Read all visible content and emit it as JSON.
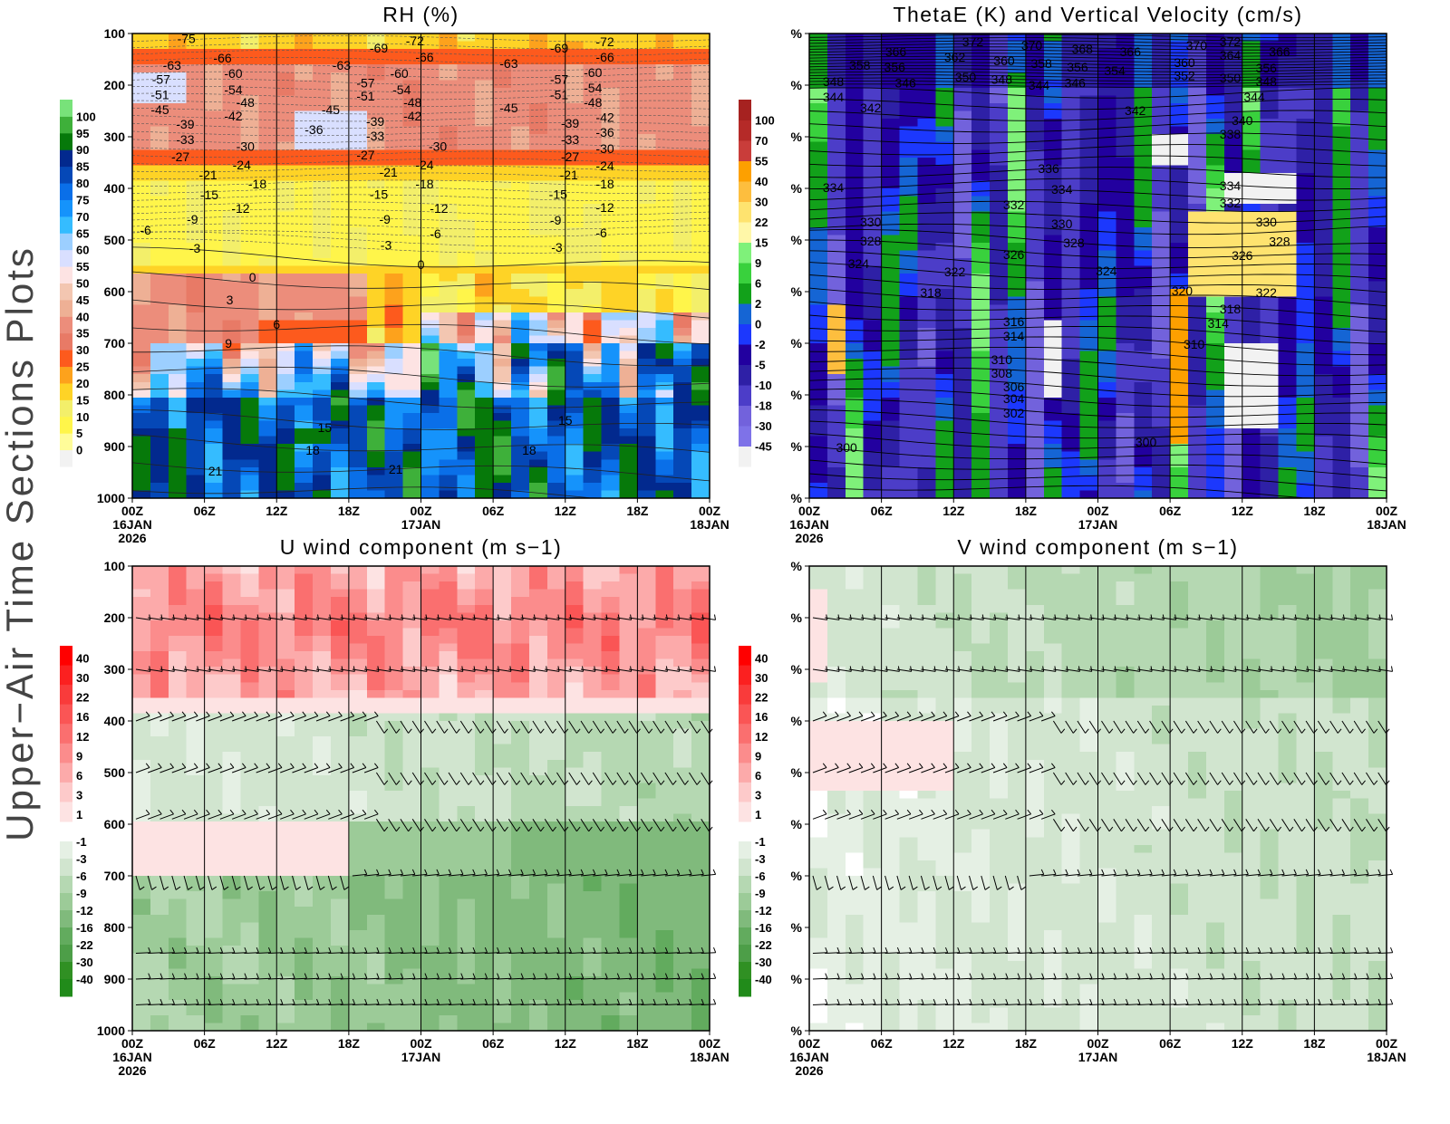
{
  "side_label": "Upper−Air Time Sections Plots",
  "chart_data": [
    {
      "type": "heatmap",
      "title": "RH (%)",
      "y_ticks": [
        "100",
        "200",
        "300",
        "400",
        "500",
        "600",
        "700",
        "800",
        "900",
        "1000"
      ],
      "ylim": [
        1000,
        100
      ],
      "x_ticks": [
        "00Z",
        "06Z",
        "12Z",
        "18Z",
        "00Z",
        "06Z",
        "12Z",
        "18Z",
        "00Z"
      ],
      "x_dates": {
        "0": [
          "16JAN",
          "2026"
        ],
        "4": [
          "17JAN"
        ],
        "8": [
          "18JAN"
        ]
      },
      "colorbar": {
        "levels": [
          "0",
          "5",
          "10",
          "15",
          "20",
          "25",
          "30",
          "35",
          "40",
          "45",
          "50",
          "55",
          "60",
          "65",
          "70",
          "75",
          "80",
          "85",
          "90",
          "95",
          "100"
        ],
        "colors": [
          "#f2f2f2",
          "#fffc99",
          "#fff54a",
          "#f3ef6a",
          "#fed326",
          "#fda21c",
          "#fd5a1d",
          "#e87a66",
          "#ec8d7b",
          "#eeb095",
          "#f3c6b1",
          "#fde3e3",
          "#d9dfff",
          "#9ccfff",
          "#35bcff",
          "#1593fb",
          "#0a6fe8",
          "#0548b7",
          "#02298e",
          "#06790a",
          "#3eb03a",
          "#78e27a"
        ]
      },
      "contour_labels": [
        [
          3.3,
          161,
          "-63"
        ],
        [
          2.4,
          189,
          "-57"
        ],
        [
          2.3,
          218,
          "-51"
        ],
        [
          2.3,
          247,
          "-45"
        ],
        [
          7.5,
          147,
          "-66"
        ],
        [
          8.4,
          177,
          "-60"
        ],
        [
          8.4,
          209,
          "-54"
        ],
        [
          9.4,
          233,
          "-48"
        ],
        [
          8.4,
          260,
          "-42"
        ],
        [
          4.4,
          275,
          "-39"
        ],
        [
          4.4,
          305,
          "-33"
        ],
        [
          4.0,
          339,
          "-27"
        ],
        [
          9.4,
          318,
          "-30"
        ],
        [
          6.3,
          374,
          "-21"
        ],
        [
          9.1,
          354,
          "-24"
        ],
        [
          6.4,
          412,
          "-15"
        ],
        [
          10.4,
          391,
          "-18"
        ],
        [
          5.0,
          460,
          "-9"
        ],
        [
          9.0,
          439,
          "-12"
        ],
        [
          1.1,
          481,
          "-6"
        ],
        [
          5.2,
          516,
          "-3"
        ],
        [
          10,
          572,
          "0"
        ],
        [
          8.1,
          616,
          "3"
        ],
        [
          12,
          663,
          "6"
        ],
        [
          8,
          700,
          "9"
        ],
        [
          16,
          863,
          "15"
        ],
        [
          15,
          907,
          "18"
        ],
        [
          6.9,
          947,
          "21"
        ],
        [
          20.5,
          128,
          "-69"
        ],
        [
          23.5,
          114,
          "-72"
        ],
        [
          24.3,
          146,
          "-66"
        ],
        [
          17.4,
          161,
          "-63"
        ],
        [
          22.2,
          177,
          "-60"
        ],
        [
          19.4,
          196,
          "-57"
        ],
        [
          19.4,
          221,
          "-51"
        ],
        [
          22.4,
          209,
          "-54"
        ],
        [
          16.5,
          247,
          "-45"
        ],
        [
          23.3,
          233,
          "-48"
        ],
        [
          23.3,
          260,
          "-42"
        ],
        [
          15.1,
          286,
          "-36"
        ],
        [
          20.2,
          270,
          "-39"
        ],
        [
          20.2,
          298,
          "-33"
        ],
        [
          19.4,
          335,
          "-27"
        ],
        [
          25.4,
          318,
          "-30"
        ],
        [
          21.3,
          368,
          "-21"
        ],
        [
          24.3,
          354,
          "-24"
        ],
        [
          20.5,
          411,
          "-15"
        ],
        [
          24.3,
          391,
          "-18"
        ],
        [
          21,
          460,
          "-9"
        ],
        [
          25.5,
          439,
          "-12"
        ],
        [
          25.2,
          488,
          "-6"
        ],
        [
          21.1,
          510,
          "-3"
        ],
        [
          24,
          547,
          "0"
        ],
        [
          21.9,
          944,
          "21"
        ],
        [
          31.3,
          158,
          "-63"
        ],
        [
          35.5,
          128,
          "-69"
        ],
        [
          39.3,
          116,
          "-72"
        ],
        [
          39.3,
          146,
          "-66"
        ],
        [
          38.3,
          175,
          "-60"
        ],
        [
          35.5,
          189,
          "-57"
        ],
        [
          38.3,
          205,
          "-54"
        ],
        [
          35.5,
          218,
          "-51"
        ],
        [
          38.3,
          233,
          "-48"
        ],
        [
          31.3,
          244,
          "-45"
        ],
        [
          39.3,
          262,
          "-42"
        ],
        [
          36.4,
          274,
          "-39"
        ],
        [
          39.3,
          291,
          "-36"
        ],
        [
          36.4,
          305,
          "-33"
        ],
        [
          39.3,
          323,
          "-30"
        ],
        [
          36.4,
          339,
          "-27"
        ],
        [
          39.3,
          356,
          "-24"
        ],
        [
          36.3,
          374,
          "-21"
        ],
        [
          39.3,
          391,
          "-18"
        ],
        [
          35.4,
          411,
          "-15"
        ],
        [
          39.3,
          437,
          "-12"
        ],
        [
          35.2,
          461,
          "-9"
        ],
        [
          39,
          486,
          "-6"
        ],
        [
          35.3,
          514,
          "-3"
        ],
        [
          36,
          849,
          "15"
        ],
        [
          33,
          907,
          "18"
        ],
        [
          4.5,
          110,
          "-75"
        ]
      ]
    },
    {
      "type": "heatmap",
      "title": "ThetaE (K) and Vertical Velocity (cm/s)",
      "y_ticks": [
        "%",
        "%",
        "%",
        "%",
        "%",
        "%",
        "%",
        "%",
        "%",
        "%"
      ],
      "x_ticks": [
        "00Z",
        "06Z",
        "12Z",
        "18Z",
        "00Z",
        "06Z",
        "12Z",
        "18Z",
        "00Z"
      ],
      "x_dates": {
        "0": [
          "16JAN",
          "2026"
        ],
        "4": [
          "17JAN"
        ],
        "8": [
          "18JAN"
        ]
      },
      "colorbar": {
        "levels": [
          "-45",
          "-30",
          "-18",
          "-10",
          "-5",
          "-2",
          "0",
          "2",
          "6",
          "9",
          "15",
          "22",
          "30",
          "40",
          "55",
          "70",
          "100"
        ],
        "colors": [
          "#f2f2f2",
          "#7e72e8",
          "#7262dc",
          "#4c3dc8",
          "#2e20a6",
          "#22009f",
          "#1c38fd",
          "#1565d4",
          "#12a11a",
          "#39d13d",
          "#7ff17a",
          "#fff7a8",
          "#fee36f",
          "#fdbe3e",
          "#fda000",
          "#c93d3a",
          "#b52a28",
          "#a62220"
        ]
      },
      "contour_labels": [
        [
          7.2,
          135,
          "366"
        ],
        [
          13.6,
          116,
          "372"
        ],
        [
          18.5,
          123,
          "370"
        ],
        [
          22.7,
          130,
          "368"
        ],
        [
          26.7,
          135,
          "366"
        ],
        [
          4.2,
          161,
          "358"
        ],
        [
          7.1,
          165,
          "356"
        ],
        [
          12.1,
          146,
          "362"
        ],
        [
          16.2,
          153,
          "360"
        ],
        [
          19.3,
          158,
          "358"
        ],
        [
          22.3,
          165,
          "356"
        ],
        [
          25.4,
          172,
          "354"
        ],
        [
          2.0,
          193,
          "348"
        ],
        [
          8.0,
          196,
          "346"
        ],
        [
          13.0,
          184,
          "350"
        ],
        [
          16.0,
          189,
          "348"
        ],
        [
          19.1,
          200,
          "344"
        ],
        [
          22.1,
          196,
          "346"
        ],
        [
          2.0,
          223,
          "344"
        ],
        [
          5.1,
          244,
          "342"
        ],
        [
          27.1,
          249,
          "342"
        ],
        [
          2.0,
          398,
          "334"
        ],
        [
          5.1,
          465,
          "330"
        ],
        [
          5.1,
          502,
          "328"
        ],
        [
          4.1,
          546,
          "324"
        ],
        [
          12.1,
          561,
          "322"
        ],
        [
          10.1,
          602,
          "318"
        ],
        [
          19.9,
          361,
          "336"
        ],
        [
          21,
          402,
          "334"
        ],
        [
          17,
          432,
          "332"
        ],
        [
          21,
          468,
          "330"
        ],
        [
          22,
          505,
          "328"
        ],
        [
          17,
          528,
          "326"
        ],
        [
          24.7,
          560,
          "324"
        ],
        [
          17,
          658,
          "316"
        ],
        [
          17,
          686,
          "314"
        ],
        [
          16,
          732,
          "310"
        ],
        [
          16,
          758,
          "308"
        ],
        [
          17,
          784,
          "306"
        ],
        [
          17,
          807,
          "304"
        ],
        [
          17,
          835,
          "302"
        ],
        [
          3.1,
          902,
          "300"
        ],
        [
          28,
          891,
          "300"
        ],
        [
          32.2,
          123,
          "370"
        ],
        [
          35,
          116,
          "372"
        ],
        [
          39.1,
          135,
          "366"
        ],
        [
          31.2,
          156,
          "360"
        ],
        [
          35,
          142,
          "364"
        ],
        [
          38,
          167,
          "356"
        ],
        [
          31.2,
          182,
          "352"
        ],
        [
          35,
          186,
          "350"
        ],
        [
          38,
          193,
          "348"
        ],
        [
          37,
          223,
          "344"
        ],
        [
          36,
          268,
          "340"
        ],
        [
          35,
          295,
          "338"
        ],
        [
          35,
          395,
          "334"
        ],
        [
          35,
          428,
          "332"
        ],
        [
          38,
          465,
          "330"
        ],
        [
          39.1,
          503,
          "328"
        ],
        [
          36,
          530,
          "326"
        ],
        [
          38,
          602,
          "322"
        ],
        [
          31,
          598,
          "320"
        ],
        [
          35,
          633,
          "318"
        ],
        [
          34,
          661,
          "314"
        ],
        [
          32,
          702,
          "310"
        ]
      ]
    },
    {
      "type": "heatmap",
      "title": "U wind component (m s−1)",
      "y_ticks": [
        "100",
        "200",
        "300",
        "400",
        "500",
        "600",
        "700",
        "800",
        "900",
        "1000"
      ],
      "x_ticks": [
        "00Z",
        "06Z",
        "12Z",
        "18Z",
        "00Z",
        "06Z",
        "12Z",
        "18Z",
        "00Z"
      ],
      "x_dates": {
        "0": [
          "16JAN",
          "2026"
        ],
        "4": [
          "17JAN"
        ],
        "8": [
          "18JAN"
        ]
      },
      "colorbar": {
        "positive_levels": [
          "40",
          "30",
          "22",
          "16",
          "12",
          "9",
          "6",
          "3",
          "1"
        ],
        "positive_colors": [
          "#ff0000",
          "#fb2020",
          "#f93b3b",
          "#fa5555",
          "#fa6f6f",
          "#fb8c8c",
          "#fcaaaa",
          "#fdcaca",
          "#fde3e3"
        ],
        "negative_levels": [
          "-1",
          "-3",
          "-6",
          "-9",
          "-12",
          "-16",
          "-22",
          "-30",
          "-40"
        ],
        "negative_colors": [
          "#e5f0e4",
          "#d1e5cf",
          "#b5d8b2",
          "#9ccb98",
          "#80ba7c",
          "#62ab5e",
          "#4d9e48",
          "#309023",
          "#218b1a"
        ]
      },
      "wind_barb_levels_hpa": [
        200,
        300,
        400,
        500,
        590,
        700,
        850,
        900,
        950
      ]
    },
    {
      "type": "heatmap",
      "title": "V wind component (m s−1)",
      "y_ticks": [
        "%",
        "%",
        "%",
        "%",
        "%",
        "%",
        "%",
        "%",
        "%",
        "%"
      ],
      "x_ticks": [
        "00Z",
        "06Z",
        "12Z",
        "18Z",
        "00Z",
        "06Z",
        "12Z",
        "18Z",
        "00Z"
      ],
      "x_dates": {
        "0": [
          "16JAN",
          "2026"
        ],
        "4": [
          "17JAN"
        ],
        "8": [
          "18JAN"
        ]
      },
      "colorbar": {
        "positive_levels": [
          "40",
          "30",
          "22",
          "16",
          "12",
          "9",
          "6",
          "3",
          "1"
        ],
        "positive_colors": [
          "#ff0000",
          "#fb2020",
          "#f93b3b",
          "#fa5555",
          "#fa6f6f",
          "#fb8c8c",
          "#fcaaaa",
          "#fdcaca",
          "#fde3e3"
        ],
        "negative_levels": [
          "-1",
          "-3",
          "-6",
          "-9",
          "-12",
          "-16",
          "-22",
          "-30",
          "-40"
        ],
        "negative_colors": [
          "#e5f0e4",
          "#d1e5cf",
          "#b5d8b2",
          "#9ccb98",
          "#80ba7c",
          "#62ab5e",
          "#4d9e48",
          "#309023",
          "#218b1a"
        ]
      },
      "wind_barb_levels_hpa": [
        200,
        300,
        400,
        500,
        590,
        700,
        850,
        900,
        950
      ]
    }
  ]
}
